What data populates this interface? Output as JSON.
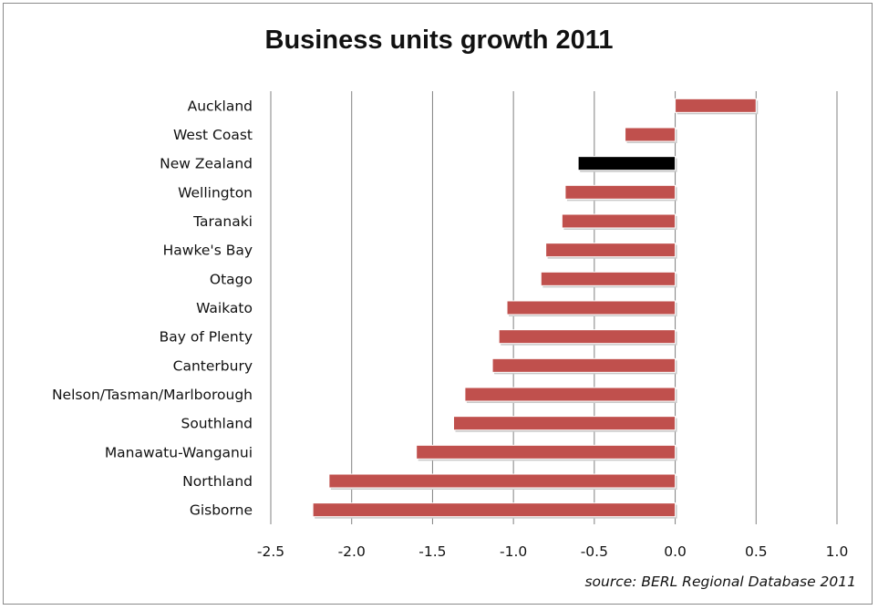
{
  "chart_data": {
    "type": "bar",
    "orientation": "horizontal",
    "title": "Business units growth 2011",
    "source_note": "source:  BERL Regional Database 2011",
    "categories": [
      "Auckland",
      "West Coast",
      "New Zealand",
      "Wellington",
      "Taranaki",
      "Hawke's Bay",
      "Otago",
      "Waikato",
      "Bay of Plenty",
      "Canterbury",
      "Nelson/Tasman/Marlborough",
      "Southland",
      "Manawatu-Wanganui",
      "Northland",
      "Gisborne"
    ],
    "values": [
      0.5,
      -0.31,
      -0.6,
      -0.68,
      -0.7,
      -0.8,
      -0.83,
      -1.04,
      -1.09,
      -1.13,
      -1.3,
      -1.37,
      -1.6,
      -2.14,
      -2.24
    ],
    "highlight": "New Zealand",
    "xlim": [
      -2.5,
      1.0
    ],
    "xticks": [
      "-2.5",
      "-2.0",
      "-1.5",
      "-1.0",
      "-0.5",
      "0.0",
      "0.5",
      "1.0"
    ],
    "xtick_values": [
      -2.5,
      -2.0,
      -1.5,
      -1.0,
      -0.5,
      0.0,
      0.5,
      1.0
    ],
    "grid": "vertical",
    "colors": {
      "bar": "#c0504d",
      "highlight": "#000000",
      "grid": "#808080"
    }
  }
}
